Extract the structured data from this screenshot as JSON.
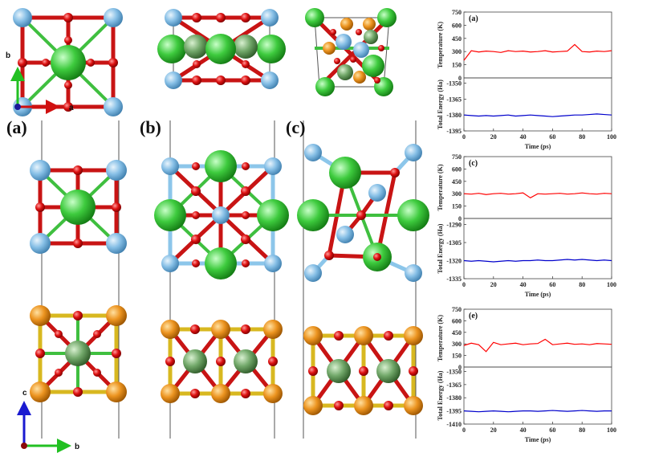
{
  "structure_labels": [
    "(a)",
    "(b)",
    "(c)"
  ],
  "axes_top": {
    "vertical": "b",
    "horizontal": "a"
  },
  "axes_bottom": {
    "vertical": "c",
    "horizontal": "b"
  },
  "chart_data": [
    {
      "type": "line",
      "title": "(a)",
      "ylabel": "Temperature (K)",
      "x": [
        0,
        5,
        10,
        15,
        20,
        25,
        30,
        35,
        40,
        45,
        50,
        55,
        60,
        65,
        70,
        75,
        80,
        85,
        90,
        95,
        100
      ],
      "xlim": [
        0,
        100
      ],
      "ylim": [
        0,
        750
      ],
      "yticks": [
        0,
        150,
        300,
        450,
        600,
        750
      ],
      "series": [
        {
          "color": "#ff0000",
          "values": [
            200,
            310,
            295,
            305,
            300,
            290,
            310,
            300,
            305,
            295,
            300,
            310,
            295,
            300,
            305,
            380,
            300,
            295,
            305,
            300,
            310
          ]
        }
      ]
    },
    {
      "type": "line",
      "ylabel": "Total Energy (Ha)",
      "xlabel": "Time (ps)",
      "x": [
        0,
        5,
        10,
        15,
        20,
        25,
        30,
        35,
        40,
        45,
        50,
        55,
        60,
        65,
        70,
        75,
        80,
        85,
        90,
        95,
        100
      ],
      "xlim": [
        0,
        100
      ],
      "xticks": [
        0,
        20,
        40,
        60,
        80,
        100
      ],
      "ylim": [
        -1395,
        -1345
      ],
      "yticks": [
        -1350,
        -1365,
        -1380,
        -1395
      ],
      "series": [
        {
          "color": "#0000cc",
          "values": [
            -1380,
            -1380.5,
            -1381,
            -1380.5,
            -1381,
            -1380.5,
            -1380,
            -1381,
            -1380.5,
            -1380,
            -1380.5,
            -1381,
            -1381.5,
            -1381,
            -1380.5,
            -1380,
            -1380,
            -1379.5,
            -1379,
            -1379.5,
            -1380
          ]
        }
      ]
    },
    {
      "type": "line",
      "title": "(c)",
      "ylabel": "Temperature (K)",
      "x": [
        0,
        5,
        10,
        15,
        20,
        25,
        30,
        35,
        40,
        45,
        50,
        55,
        60,
        65,
        70,
        75,
        80,
        85,
        90,
        95,
        100
      ],
      "xlim": [
        0,
        100
      ],
      "ylim": [
        0,
        750
      ],
      "yticks": [
        0,
        150,
        300,
        450,
        600,
        750
      ],
      "series": [
        {
          "color": "#ff0000",
          "values": [
            300,
            295,
            305,
            290,
            300,
            305,
            295,
            300,
            310,
            250,
            300,
            295,
            300,
            305,
            295,
            300,
            310,
            300,
            295,
            305,
            300
          ]
        }
      ]
    },
    {
      "type": "line",
      "ylabel": "Total Energy (Ha)",
      "xlabel": "Time (ps)",
      "x": [
        0,
        5,
        10,
        15,
        20,
        25,
        30,
        35,
        40,
        45,
        50,
        55,
        60,
        65,
        70,
        75,
        80,
        85,
        90,
        95,
        100
      ],
      "xlim": [
        0,
        100
      ],
      "xticks": [
        0,
        20,
        40,
        60,
        80,
        100
      ],
      "ylim": [
        -1335,
        -1285
      ],
      "yticks": [
        -1290,
        -1305,
        -1320,
        -1335
      ],
      "series": [
        {
          "color": "#0000cc",
          "values": [
            -1320,
            -1320.5,
            -1320,
            -1320.5,
            -1321,
            -1320.5,
            -1320,
            -1320.5,
            -1320,
            -1320,
            -1319.5,
            -1320,
            -1320,
            -1319.5,
            -1319,
            -1319.5,
            -1319,
            -1319.5,
            -1320,
            -1319.5,
            -1320
          ]
        }
      ]
    },
    {
      "type": "line",
      "title": "(e)",
      "ylabel": "Temperature (K)",
      "x": [
        0,
        5,
        10,
        15,
        20,
        25,
        30,
        35,
        40,
        45,
        50,
        55,
        60,
        65,
        70,
        75,
        80,
        85,
        90,
        95,
        100
      ],
      "xlim": [
        0,
        100
      ],
      "ylim": [
        0,
        750
      ],
      "yticks": [
        0,
        150,
        300,
        450,
        600,
        750
      ],
      "series": [
        {
          "color": "#ff0000",
          "values": [
            280,
            310,
            290,
            200,
            320,
            290,
            300,
            310,
            290,
            300,
            305,
            360,
            290,
            300,
            310,
            295,
            300,
            290,
            305,
            300,
            295
          ]
        }
      ]
    },
    {
      "type": "line",
      "ylabel": "Total Energy (Ha)",
      "xlabel": "Time (ps)",
      "x": [
        0,
        5,
        10,
        15,
        20,
        25,
        30,
        35,
        40,
        45,
        50,
        55,
        60,
        65,
        70,
        75,
        80,
        85,
        90,
        95,
        100
      ],
      "xlim": [
        0,
        100
      ],
      "xticks": [
        0,
        20,
        40,
        60,
        80,
        100
      ],
      "ylim": [
        -1410,
        -1345
      ],
      "yticks": [
        -1350,
        -1365,
        -1380,
        -1395,
        -1410
      ],
      "series": [
        {
          "color": "#0000cc",
          "values": [
            -1395,
            -1395.5,
            -1396,
            -1395.5,
            -1395,
            -1395.5,
            -1396,
            -1395.5,
            -1395,
            -1395,
            -1395.5,
            -1395,
            -1394.5,
            -1395,
            -1395.5,
            -1395,
            -1394.5,
            -1395,
            -1395.5,
            -1395,
            -1395
          ]
        }
      ]
    }
  ]
}
